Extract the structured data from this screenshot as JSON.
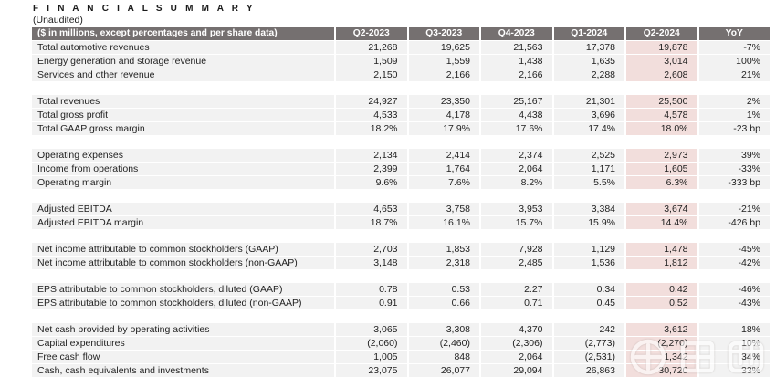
{
  "page": {
    "title": "F I N A N C I A L   S U M M A R Y",
    "subtitle": "(Unaudited)"
  },
  "colors": {
    "header-bg": "#757070",
    "header-text": "#ffffff",
    "row-bg": "#f2f2f2",
    "highlight-bg": "#f2dedc",
    "text": "#1f1f1f"
  },
  "table": {
    "columns": [
      "($ in millions, except percentages and per share data)",
      "Q2-2023",
      "Q3-2023",
      "Q4-2023",
      "Q1-2024",
      "Q2-2024",
      "YoY"
    ],
    "highlight_column": "Q2-2024",
    "sections": [
      {
        "rows": [
          {
            "label": "Total automotive revenues",
            "values": [
              "21,268",
              "19,625",
              "21,563",
              "17,378",
              "19,878",
              "-7%"
            ]
          },
          {
            "label": "Energy generation and storage revenue",
            "values": [
              "1,509",
              "1,559",
              "1,438",
              "1,635",
              "3,014",
              "100%"
            ]
          },
          {
            "label": "Services and other revenue",
            "values": [
              "2,150",
              "2,166",
              "2,166",
              "2,288",
              "2,608",
              "21%"
            ]
          }
        ]
      },
      {
        "rows": [
          {
            "label": "Total revenues",
            "values": [
              "24,927",
              "23,350",
              "25,167",
              "21,301",
              "25,500",
              "2%"
            ]
          },
          {
            "label": "Total gross profit",
            "values": [
              "4,533",
              "4,178",
              "4,438",
              "3,696",
              "4,578",
              "1%"
            ]
          },
          {
            "label": "Total GAAP gross margin",
            "values": [
              "18.2%",
              "17.9%",
              "17.6%",
              "17.4%",
              "18.0%",
              "-23 bp"
            ]
          }
        ]
      },
      {
        "rows": [
          {
            "label": "Operating expenses",
            "values": [
              "2,134",
              "2,414",
              "2,374",
              "2,525",
              "2,973",
              "39%"
            ]
          },
          {
            "label": "Income from operations",
            "values": [
              "2,399",
              "1,764",
              "2,064",
              "1,171",
              "1,605",
              "-33%"
            ]
          },
          {
            "label": "Operating margin",
            "values": [
              "9.6%",
              "7.6%",
              "8.2%",
              "5.5%",
              "6.3%",
              "-333 bp"
            ]
          }
        ]
      },
      {
        "rows": [
          {
            "label": "Adjusted EBITDA",
            "values": [
              "4,653",
              "3,758",
              "3,953",
              "3,384",
              "3,674",
              "-21%"
            ]
          },
          {
            "label": "Adjusted EBITDA margin",
            "values": [
              "18.7%",
              "16.1%",
              "15.7%",
              "15.9%",
              "14.4%",
              "-426 bp"
            ]
          }
        ]
      },
      {
        "rows": [
          {
            "label": "Net income attributable to common stockholders (GAAP)",
            "values": [
              "2,703",
              "1,853",
              "7,928",
              "1,129",
              "1,478",
              "-45%"
            ]
          },
          {
            "label": "Net income attributable to common stockholders (non-GAAP)",
            "values": [
              "3,148",
              "2,318",
              "2,485",
              "1,536",
              "1,812",
              "-42%"
            ]
          }
        ]
      },
      {
        "rows": [
          {
            "label": "EPS attributable to common stockholders, diluted (GAAP)",
            "values": [
              "0.78",
              "0.53",
              "2.27",
              "0.34",
              "0.42",
              "-46%"
            ]
          },
          {
            "label": "EPS attributable to common stockholders, diluted (non-GAAP)",
            "values": [
              "0.91",
              "0.66",
              "0.71",
              "0.45",
              "0.52",
              "-43%"
            ]
          }
        ]
      },
      {
        "rows": [
          {
            "label": "Net cash provided by operating activities",
            "values": [
              "3,065",
              "3,308",
              "4,370",
              "242",
              "3,612",
              "18%"
            ]
          },
          {
            "label": "Capital expenditures",
            "values": [
              "(2,060)",
              "(2,460)",
              "(2,306)",
              "(2,773)",
              "(2,270)",
              "10%"
            ]
          },
          {
            "label": "Free cash flow",
            "values": [
              "1,005",
              "848",
              "2,064",
              "(2,531)",
              "1,342",
              "34%"
            ]
          },
          {
            "label": "Cash, cash equivalents and investments",
            "values": [
              "23,075",
              "26,077",
              "29,094",
              "26,863",
              "30,720",
              "33%"
            ]
          }
        ]
      }
    ]
  },
  "watermark": {
    "text": "车东西"
  }
}
